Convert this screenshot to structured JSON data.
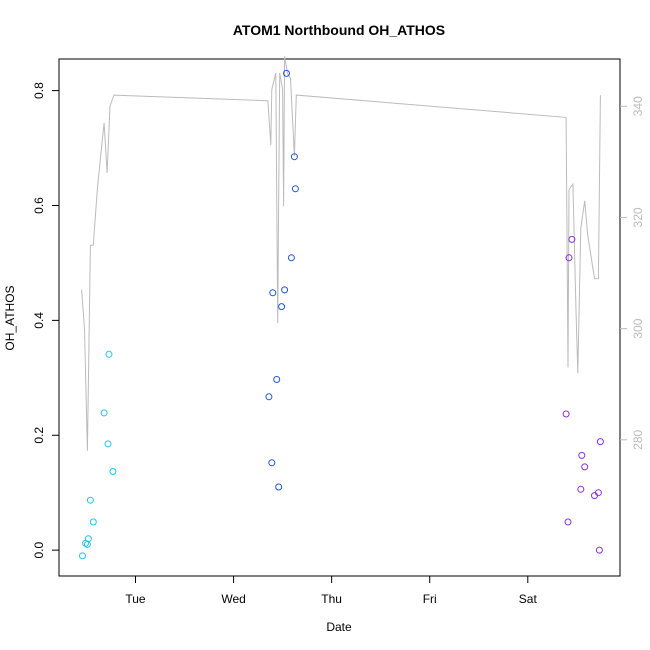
{
  "chart_data": {
    "type": "scatter",
    "title": "ATOM1 Northbound OH_ATHOS",
    "xlabel": "Date",
    "ylabel": "OH_ATHOS",
    "x_ticks": [
      {
        "label": "Tue",
        "x": 1.0
      },
      {
        "label": "Wed",
        "x": 2.0
      },
      {
        "label": "Thu",
        "x": 3.0
      },
      {
        "label": "Fri",
        "x": 4.0
      },
      {
        "label": "Sat",
        "x": 5.0
      }
    ],
    "xlim": [
      0.22,
      5.94
    ],
    "ylim": [
      -0.045,
      0.855
    ],
    "y_ticks": [
      0.0,
      0.2,
      0.4,
      0.6,
      0.8
    ],
    "y2lim": [
      255.5,
      348.5
    ],
    "y2_ticks": [
      280,
      300,
      320,
      340
    ],
    "series": [
      {
        "color": "#22c4ee",
        "points": [
          [
            0.46,
            -0.01
          ],
          [
            0.49,
            0.012
          ],
          [
            0.51,
            0.01
          ],
          [
            0.52,
            0.02
          ],
          [
            0.54,
            0.087
          ],
          [
            0.57,
            0.049
          ],
          [
            0.68,
            0.239
          ],
          [
            0.72,
            0.185
          ],
          [
            0.73,
            0.341
          ],
          [
            0.77,
            0.137
          ]
        ]
      },
      {
        "color": "#2255dd",
        "points": [
          [
            2.36,
            0.267
          ],
          [
            2.39,
            0.152
          ],
          [
            2.4,
            0.448
          ],
          [
            2.44,
            0.297
          ],
          [
            2.46,
            0.11
          ],
          [
            2.49,
            0.424
          ],
          [
            2.52,
            0.453
          ],
          [
            2.54,
            0.83
          ],
          [
            2.59,
            0.509
          ],
          [
            2.62,
            0.685
          ],
          [
            2.63,
            0.629
          ]
        ]
      },
      {
        "color": "#8833dd",
        "points": [
          [
            5.39,
            0.237
          ],
          [
            5.41,
            0.049
          ],
          [
            5.42,
            0.509
          ],
          [
            5.45,
            0.541
          ],
          [
            5.54,
            0.106
          ],
          [
            5.55,
            0.165
          ],
          [
            5.58,
            0.145
          ],
          [
            5.68,
            0.095
          ],
          [
            5.72,
            0.1
          ],
          [
            5.73,
            0.0
          ],
          [
            5.74,
            0.189
          ]
        ]
      }
    ],
    "line_series": {
      "color": "#bbbbbb",
      "axis": "right",
      "points": [
        [
          0.45,
          307
        ],
        [
          0.48,
          300
        ],
        [
          0.51,
          278
        ],
        [
          0.54,
          315
        ],
        [
          0.57,
          315
        ],
        [
          0.61,
          325
        ],
        [
          0.65,
          332
        ],
        [
          0.68,
          337
        ],
        [
          0.71,
          328
        ],
        [
          0.74,
          340
        ],
        [
          0.78,
          342
        ],
        [
          2.35,
          341
        ],
        [
          2.38,
          333
        ],
        [
          2.39,
          343
        ],
        [
          2.43,
          346
        ],
        [
          2.45,
          301
        ],
        [
          2.47,
          346
        ],
        [
          2.5,
          343
        ],
        [
          2.51,
          322
        ],
        [
          2.52,
          349
        ],
        [
          2.55,
          346
        ],
        [
          2.58,
          345
        ],
        [
          2.62,
          331
        ],
        [
          2.64,
          342
        ],
        [
          5.39,
          338
        ],
        [
          5.41,
          293
        ],
        [
          5.42,
          325
        ],
        [
          5.46,
          326
        ],
        [
          5.49,
          304
        ],
        [
          5.51,
          292
        ],
        [
          5.54,
          318
        ],
        [
          5.58,
          323
        ],
        [
          5.61,
          317
        ],
        [
          5.68,
          309
        ],
        [
          5.72,
          309
        ],
        [
          5.74,
          342
        ]
      ]
    }
  }
}
